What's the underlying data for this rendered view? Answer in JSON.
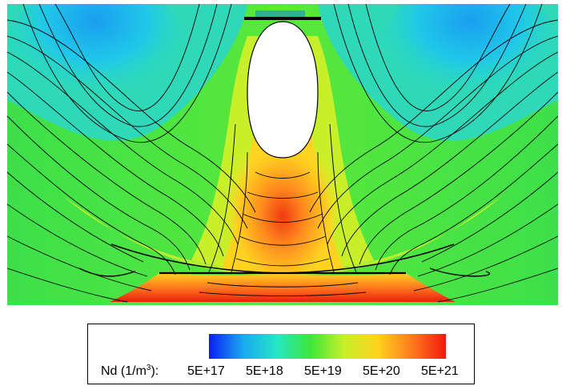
{
  "chart_data": {
    "type": "heatmap",
    "title": "",
    "variable": "Nd",
    "units_prefix": "(1/m",
    "units_exponent": "3",
    "units_suffix": "):",
    "scale": "log",
    "range": [
      5e+17,
      5e+21
    ],
    "colorbar_ticks": [
      "5E+17",
      "5E+18",
      "5E+19",
      "5E+20",
      "5E+21"
    ],
    "colormap": [
      "#0b1ef2",
      "#1aa8f0",
      "#26e6c8",
      "#3ee63a",
      "#c8f02a",
      "#ffd21e",
      "#ff7a1e",
      "#f0190f"
    ],
    "contour_lines": true,
    "legend_placement": "bottom-center"
  }
}
